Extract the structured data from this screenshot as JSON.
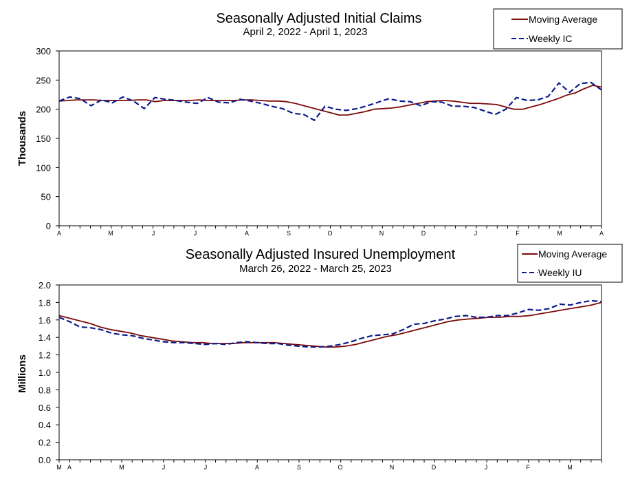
{
  "chart_data": [
    {
      "type": "line",
      "title": "Seasonally Adjusted Initial Claims",
      "subtitle": "April 2, 2022 - April 1, 2023",
      "ylabel": "Thousands",
      "ylim": [
        0,
        300
      ],
      "yticks": [
        "0",
        "50",
        "100",
        "150",
        "200",
        "250",
        "300"
      ],
      "month_labels": [
        "A",
        "M",
        "J",
        "J",
        "A",
        "S",
        "O",
        "N",
        "D",
        "J",
        "F",
        "M",
        "A"
      ],
      "grid": false,
      "legend_position": "top-right",
      "colors": {
        "moving_average": "#7a0a0a",
        "weekly": "#0a1a8a"
      },
      "series": [
        {
          "name": "Moving Average",
          "style": "solid",
          "values": [
            214,
            215,
            216,
            216,
            216,
            215,
            215,
            215,
            215,
            216,
            216,
            213,
            215,
            215,
            215,
            215,
            216,
            215,
            215,
            215,
            215,
            216,
            216,
            215,
            214,
            214,
            213,
            210,
            206,
            202,
            198,
            194,
            190,
            190,
            193,
            196,
            200,
            201,
            202,
            204,
            207,
            210,
            213,
            214,
            215,
            214,
            212,
            210,
            210,
            209,
            208,
            204,
            200,
            200,
            204,
            208,
            213,
            218,
            224,
            228,
            235,
            241,
            238
          ]
        },
        {
          "name": "Weekly IC",
          "style": "dashed",
          "values": [
            214,
            221,
            218,
            206,
            216,
            211,
            221,
            214,
            201,
            220,
            217,
            215,
            212,
            210,
            220,
            212,
            211,
            217,
            214,
            210,
            205,
            201,
            193,
            191,
            181,
            205,
            200,
            198,
            201,
            206,
            212,
            218,
            214,
            213,
            206,
            213,
            212,
            205,
            205,
            203,
            197,
            191,
            200,
            220,
            215,
            216,
            222,
            245,
            229,
            244,
            246,
            233
          ]
        }
      ]
    },
    {
      "type": "line",
      "title": "Seasonally Adjusted Insured Unemployment",
      "subtitle": "March 26, 2022 - March 25, 2023",
      "ylabel": "Millions",
      "ylim": [
        0.0,
        2.0
      ],
      "yticks": [
        "0.0",
        "0.2",
        "0.4",
        "0.6",
        "0.8",
        "1.0",
        "1.2",
        "1.4",
        "1.6",
        "1.8",
        "2.0"
      ],
      "month_labels": [
        "M",
        "A",
        "M",
        "J",
        "J",
        "A",
        "S",
        "O",
        "N",
        "D",
        "J",
        "F",
        "M"
      ],
      "grid": false,
      "legend_position": "top-right",
      "colors": {
        "moving_average": "#7a0a0a",
        "weekly": "#0a1a8a"
      },
      "series": [
        {
          "name": "Moving Average",
          "style": "solid",
          "values": [
            1.65,
            1.62,
            1.59,
            1.56,
            1.52,
            1.49,
            1.47,
            1.45,
            1.42,
            1.4,
            1.38,
            1.36,
            1.35,
            1.34,
            1.34,
            1.33,
            1.33,
            1.33,
            1.34,
            1.34,
            1.34,
            1.34,
            1.33,
            1.32,
            1.31,
            1.3,
            1.29,
            1.29,
            1.3,
            1.32,
            1.35,
            1.38,
            1.41,
            1.43,
            1.46,
            1.49,
            1.52,
            1.55,
            1.58,
            1.6,
            1.61,
            1.62,
            1.63,
            1.63,
            1.64,
            1.64,
            1.65,
            1.67,
            1.69,
            1.71,
            1.73,
            1.75,
            1.77,
            1.8
          ]
        },
        {
          "name": "Weekly IU",
          "style": "dashed",
          "values": [
            1.63,
            1.58,
            1.52,
            1.51,
            1.49,
            1.45,
            1.43,
            1.42,
            1.39,
            1.37,
            1.35,
            1.34,
            1.34,
            1.33,
            1.32,
            1.33,
            1.32,
            1.34,
            1.35,
            1.34,
            1.33,
            1.33,
            1.31,
            1.3,
            1.29,
            1.29,
            1.3,
            1.32,
            1.35,
            1.39,
            1.42,
            1.43,
            1.44,
            1.49,
            1.55,
            1.56,
            1.59,
            1.61,
            1.64,
            1.65,
            1.63,
            1.63,
            1.65,
            1.65,
            1.68,
            1.72,
            1.71,
            1.73,
            1.78,
            1.77,
            1.8,
            1.82,
            1.81
          ]
        }
      ]
    }
  ]
}
